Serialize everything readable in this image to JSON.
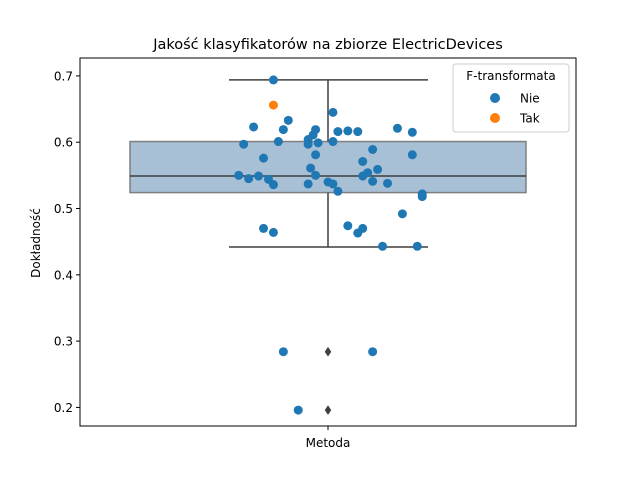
{
  "chart_data": {
    "type": "scatter",
    "subtype": "boxplot-with-stripplot",
    "title": "Jakość klasyfikatorów na zbiorze ElectricDevices",
    "xlabel": "",
    "ylabel": "Dokładność",
    "categories": [
      "Metoda"
    ],
    "ylim": [
      0.172,
      0.727
    ],
    "yticks": [
      0.2,
      0.3,
      0.4,
      0.5,
      0.6,
      0.7
    ],
    "ytick_labels": [
      "0.2",
      "0.3",
      "0.4",
      "0.5",
      "0.6",
      "0.7"
    ],
    "box": {
      "q1": 0.524,
      "median": 0.549,
      "q3": 0.601,
      "whisker_low": 0.442,
      "whisker_high": 0.694,
      "outliers": [
        0.284,
        0.196
      ],
      "fill_color": "#a7c0d6",
      "edge_color": "#3f3f3f"
    },
    "legend": {
      "title": "F-transformata",
      "placement": "top-right",
      "entries": [
        {
          "label": "Nie",
          "color": "#1f77b4"
        },
        {
          "label": "Tak",
          "color": "#ff7f0e"
        }
      ]
    },
    "series": [
      {
        "name": "Nie",
        "color": "#1f77b4",
        "points": [
          {
            "jitter": -0.11,
            "y": 0.694
          },
          {
            "jitter": -0.15,
            "y": 0.623
          },
          {
            "jitter": -0.08,
            "y": 0.633
          },
          {
            "jitter": -0.09,
            "y": 0.619
          },
          {
            "jitter": -0.17,
            "y": 0.597
          },
          {
            "jitter": -0.1,
            "y": 0.601
          },
          {
            "jitter": -0.13,
            "y": 0.576
          },
          {
            "jitter": -0.18,
            "y": 0.55
          },
          {
            "jitter": -0.16,
            "y": 0.545
          },
          {
            "jitter": -0.14,
            "y": 0.549
          },
          {
            "jitter": -0.12,
            "y": 0.544
          },
          {
            "jitter": -0.11,
            "y": 0.536
          },
          {
            "jitter": -0.13,
            "y": 0.47
          },
          {
            "jitter": -0.11,
            "y": 0.464
          },
          {
            "jitter": -0.09,
            "y": 0.284
          },
          {
            "jitter": -0.06,
            "y": 0.196
          },
          {
            "jitter": 0.01,
            "y": 0.645
          },
          {
            "jitter": -0.04,
            "y": 0.604
          },
          {
            "jitter": -0.03,
            "y": 0.611
          },
          {
            "jitter": -0.025,
            "y": 0.619
          },
          {
            "jitter": 0.02,
            "y": 0.616
          },
          {
            "jitter": 0.04,
            "y": 0.617
          },
          {
            "jitter": 0.06,
            "y": 0.616
          },
          {
            "jitter": -0.02,
            "y": 0.599
          },
          {
            "jitter": -0.04,
            "y": 0.597
          },
          {
            "jitter": 0.01,
            "y": 0.601
          },
          {
            "jitter": -0.025,
            "y": 0.581
          },
          {
            "jitter": -0.035,
            "y": 0.561
          },
          {
            "jitter": -0.025,
            "y": 0.55
          },
          {
            "jitter": -0.04,
            "y": 0.537
          },
          {
            "jitter": 0.0,
            "y": 0.54
          },
          {
            "jitter": 0.01,
            "y": 0.537
          },
          {
            "jitter": 0.02,
            "y": 0.526
          },
          {
            "jitter": 0.09,
            "y": 0.589
          },
          {
            "jitter": 0.07,
            "y": 0.571
          },
          {
            "jitter": 0.08,
            "y": 0.554
          },
          {
            "jitter": 0.1,
            "y": 0.559
          },
          {
            "jitter": 0.07,
            "y": 0.549
          },
          {
            "jitter": 0.09,
            "y": 0.541
          },
          {
            "jitter": 0.12,
            "y": 0.538
          },
          {
            "jitter": 0.14,
            "y": 0.621
          },
          {
            "jitter": 0.17,
            "y": 0.615
          },
          {
            "jitter": 0.17,
            "y": 0.581
          },
          {
            "jitter": 0.19,
            "y": 0.522
          },
          {
            "jitter": 0.19,
            "y": 0.518
          },
          {
            "jitter": 0.15,
            "y": 0.492
          },
          {
            "jitter": 0.04,
            "y": 0.474
          },
          {
            "jitter": 0.07,
            "y": 0.47
          },
          {
            "jitter": 0.06,
            "y": 0.463
          },
          {
            "jitter": 0.11,
            "y": 0.443
          },
          {
            "jitter": 0.18,
            "y": 0.443
          },
          {
            "jitter": 0.09,
            "y": 0.284
          }
        ]
      },
      {
        "name": "Tak",
        "color": "#ff7f0e",
        "points": [
          {
            "jitter": -0.11,
            "y": 0.656
          }
        ]
      }
    ]
  }
}
